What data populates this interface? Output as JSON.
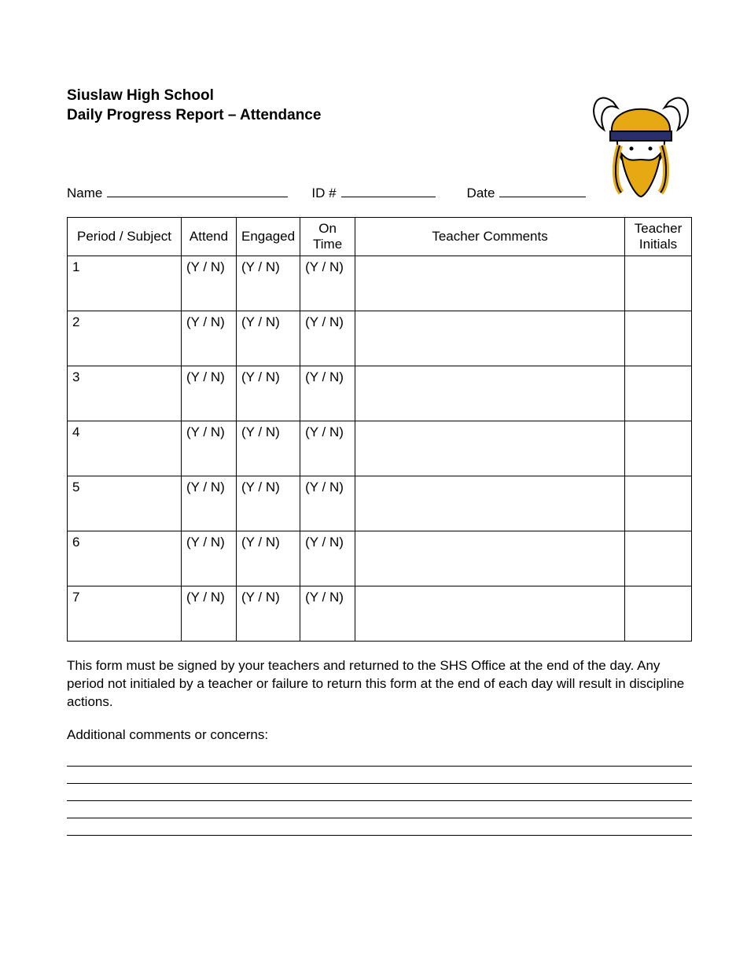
{
  "header": {
    "school": "Siuslaw High School",
    "report_title": "Daily Progress Report – Attendance"
  },
  "logo": {
    "colors": {
      "gold": "#e6a813",
      "navy": "#2a2e6b",
      "white": "#ffffff",
      "outline": "#000000"
    }
  },
  "fields": {
    "name_label": "Name",
    "id_label": "ID #",
    "date_label": "Date",
    "name_value": "",
    "id_value": "",
    "date_value": ""
  },
  "table": {
    "columns": [
      {
        "key": "period",
        "label": "Period / Subject"
      },
      {
        "key": "attend",
        "label": "Attend"
      },
      {
        "key": "engaged",
        "label": "Engaged"
      },
      {
        "key": "ontime",
        "label": "On Time"
      },
      {
        "key": "comments",
        "label": "Teacher Comments"
      },
      {
        "key": "initials",
        "label": "Teacher Initials"
      }
    ],
    "yn_placeholder": "(Y / N)",
    "rows": [
      {
        "period": "1",
        "attend": "(Y / N)",
        "engaged": "(Y / N)",
        "ontime": "(Y / N)",
        "comments": "",
        "initials": ""
      },
      {
        "period": "2",
        "attend": "(Y / N)",
        "engaged": "(Y / N)",
        "ontime": "(Y / N)",
        "comments": "",
        "initials": ""
      },
      {
        "period": "3",
        "attend": "(Y / N)",
        "engaged": "(Y / N)",
        "ontime": "(Y / N)",
        "comments": "",
        "initials": ""
      },
      {
        "period": "4",
        "attend": "(Y / N)",
        "engaged": "(Y / N)",
        "ontime": "(Y / N)",
        "comments": "",
        "initials": ""
      },
      {
        "period": "5",
        "attend": "(Y / N)",
        "engaged": "(Y / N)",
        "ontime": "(Y / N)",
        "comments": "",
        "initials": ""
      },
      {
        "period": "6",
        "attend": "(Y / N)",
        "engaged": "(Y / N)",
        "ontime": "(Y / N)",
        "comments": "",
        "initials": ""
      },
      {
        "period": "7",
        "attend": "(Y / N)",
        "engaged": "(Y / N)",
        "ontime": "(Y / N)",
        "comments": "",
        "initials": ""
      }
    ]
  },
  "instructions_text": "This form must be signed by your teachers and returned to the SHS Office at the end of the day.  Any period not initialed by a teacher or failure to return this form at the end of each day will result in discipline actions.",
  "additional_label": "Additional comments or concerns:",
  "additional_lines_count": 5
}
